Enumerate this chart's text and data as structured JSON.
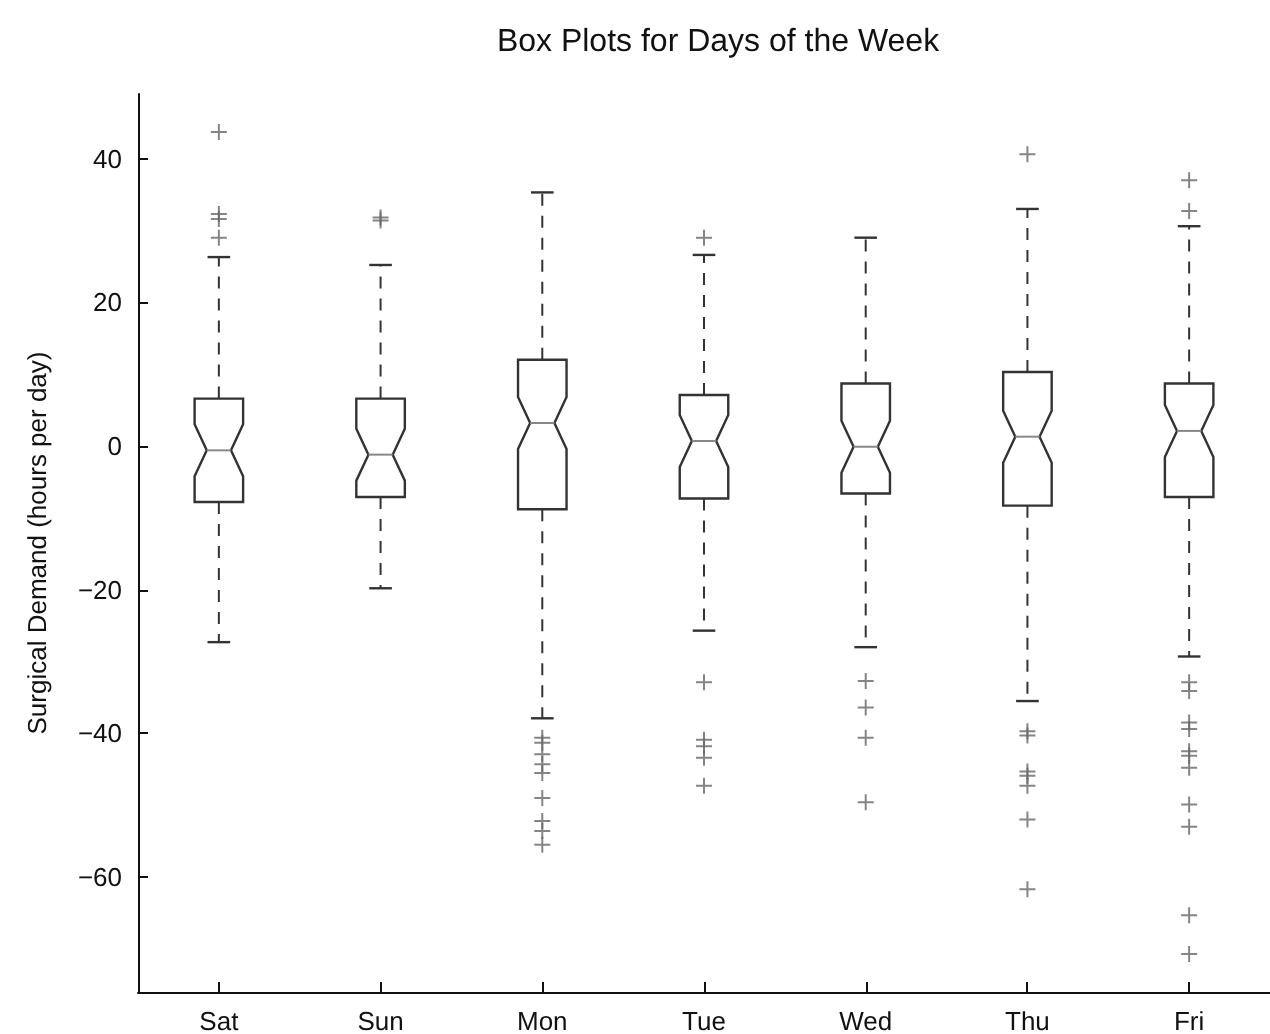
{
  "chart_data": {
    "type": "box",
    "title": "Box Plots for Days of the Week",
    "ylabel": "Surgical Demand (hours per day)",
    "categories": [
      "Sat",
      "Sun",
      "Mon",
      "Tue",
      "Wed",
      "Thu",
      "Fri"
    ],
    "ylim": [
      -76,
      49
    ],
    "yticks": [
      -60,
      -40,
      -20,
      0,
      20,
      40
    ],
    "grid": false,
    "color": "#333333",
    "boxes": [
      {
        "low": -27.3,
        "q1": -7.8,
        "median": -0.6,
        "q3": 6.6,
        "high": 26.3,
        "outliers": [
          43.7,
          32.3,
          31.6,
          29
        ]
      },
      {
        "low": -19.8,
        "q1": -7.1,
        "median": -1.2,
        "q3": 6.6,
        "high": 25.2,
        "outliers": [
          31.4,
          31.8
        ]
      },
      {
        "low": -37.9,
        "q1": -8.8,
        "median": 3.2,
        "q3": 12.0,
        "high": 35.3,
        "outliers": [
          -40.6,
          -41.3,
          -42.9,
          -44.3,
          -45.5,
          -49,
          -52.2,
          -53.6,
          -55.5
        ]
      },
      {
        "low": -25.7,
        "q1": -7.3,
        "median": 0.7,
        "q3": 7.1,
        "high": 26.6,
        "outliers": [
          29,
          -32.9,
          -40.9,
          -41.8,
          -43.4,
          -47.3
        ]
      },
      {
        "low": -28,
        "q1": -6.6,
        "median": -0.1,
        "q3": 8.7,
        "high": 29,
        "outliers": [
          -32.7,
          -36.4,
          -40.6,
          -49.6
        ]
      },
      {
        "low": -35.5,
        "q1": -8.3,
        "median": 1.3,
        "q3": 10.3,
        "high": 33,
        "outliers": [
          40.6,
          -39.7,
          -40.3,
          -45.3,
          -45.9,
          -47.3,
          -52,
          -61.7
        ]
      },
      {
        "low": -29.3,
        "q1": -7.1,
        "median": 2.1,
        "q3": 8.7,
        "high": 30.6,
        "outliers": [
          37,
          32.7,
          -32.9,
          -34.1,
          -38.5,
          -39.4,
          -42.5,
          -43.1,
          -44.8,
          -49.9,
          -53,
          -65.3,
          -70.7
        ]
      }
    ]
  }
}
